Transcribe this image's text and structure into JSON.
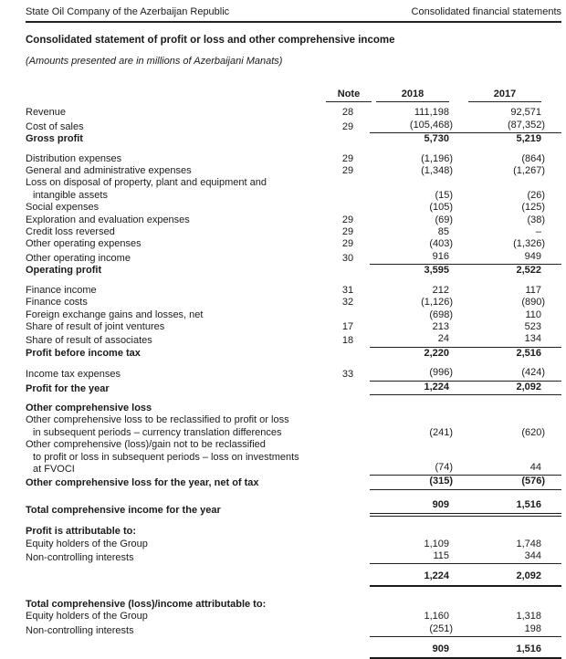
{
  "page_header": {
    "left": "State Oil Company of the Azerbaijan Republic",
    "right": "Consolidated financial statements"
  },
  "title": "Consolidated statement of profit or loss and other comprehensive income",
  "subtitle": "(Amounts presented are in millions of Azerbaijani Manats)",
  "columns": {
    "note": "Note",
    "y2018": "2018",
    "y2017": "2017"
  },
  "statement": {
    "rows": [
      {
        "label": "Revenue",
        "note": "28",
        "v2018": "111,198",
        "v2017": "92,571"
      },
      {
        "label": "Cost of sales",
        "note": "29",
        "v2018": "(105,468)",
        "v2017": "(87,352)",
        "rule": "single"
      },
      {
        "label": "Gross profit",
        "bold": true,
        "v2018": "5,730",
        "v2017": "5,219"
      },
      {
        "gap": 8
      },
      {
        "label": "Distribution expenses",
        "note": "29",
        "v2018": "(1,196)",
        "v2017": "(864)"
      },
      {
        "label": "General and administrative expenses",
        "note": "29",
        "v2018": "(1,348)",
        "v2017": "(1,267)"
      },
      {
        "lines": [
          "Loss on disposal of property, plant and equipment and",
          "intangible assets"
        ],
        "v2018": "(15)",
        "v2017": "(26)"
      },
      {
        "label": "Social expenses",
        "v2018": "(105)",
        "v2017": "(125)"
      },
      {
        "label": "Exploration and evaluation expenses",
        "note": "29",
        "v2018": "(69)",
        "v2017": "(38)"
      },
      {
        "label": "Credit loss reversed",
        "note": "29",
        "v2018": "85",
        "v2017": "–"
      },
      {
        "label": "Other operating expenses",
        "note": "29",
        "v2018": "(403)",
        "v2017": "(1,326)"
      },
      {
        "label": "Other operating income",
        "note": "30",
        "v2018": "916",
        "v2017": "949",
        "rule": "single"
      },
      {
        "label": "Operating profit",
        "bold": true,
        "v2018": "3,595",
        "v2017": "2,522"
      },
      {
        "gap": 8
      },
      {
        "label": "Finance income",
        "note": "31",
        "v2018": "212",
        "v2017": "117"
      },
      {
        "label": "Finance costs",
        "note": "32",
        "v2018": "(1,126)",
        "v2017": "(890)"
      },
      {
        "label": "Foreign exchange gains and losses, net",
        "v2018": "(698)",
        "v2017": "110"
      },
      {
        "label": "Share of result of joint ventures",
        "note": "17",
        "v2018": "213",
        "v2017": "523"
      },
      {
        "label": "Share of result of associates",
        "note": "18",
        "v2018": "24",
        "v2017": "134",
        "rule": "single"
      },
      {
        "label": "Profit before income tax",
        "bold": true,
        "v2018": "2,220",
        "v2017": "2,516"
      },
      {
        "gap": 8
      },
      {
        "label": "Income tax expenses",
        "note": "33",
        "v2018": "(996)",
        "v2017": "(424)",
        "rule": "single"
      },
      {
        "label": "Profit for the year",
        "bold": true,
        "v2018": "1,224",
        "v2017": "2,092",
        "rule": "single"
      },
      {
        "gap": 8
      },
      {
        "label": "Other comprehensive loss",
        "bold": true
      },
      {
        "lines": [
          "Other comprehensive loss to be reclassified to profit or loss",
          "in subsequent periods – currency translation differences"
        ],
        "v2018": "(241)",
        "v2017": "(620)"
      },
      {
        "lines": [
          "Other comprehensive (loss)/gain not to be reclassified",
          "to profit or loss in subsequent periods – loss on investments",
          "at FVOCI"
        ],
        "v2018": "(74)",
        "v2017": "44",
        "rule": "single"
      },
      {
        "label": "Other comprehensive loss for the year, net of tax",
        "bold": true,
        "v2018": "(315)",
        "v2017": "(576)",
        "rule": "single"
      },
      {
        "gap": 10
      },
      {
        "label": "Total comprehensive income for the year",
        "bold": true,
        "v2018": "909",
        "v2017": "1,516",
        "rule": "double"
      },
      {
        "gap": 10
      },
      {
        "label": "Profit is attributable to:",
        "bold": true
      },
      {
        "label": "Equity holders of the Group",
        "v2018": "1,109",
        "v2017": "1,748"
      },
      {
        "label": "Non-controlling interests",
        "v2018": "115",
        "v2017": "344",
        "rule": "single"
      },
      {
        "gap": 7
      },
      {
        "id": "profit-attributable-total",
        "bold": true,
        "v2018": "1,224",
        "v2017": "2,092",
        "rule": "thick"
      },
      {
        "gap": 13
      },
      {
        "label": "Total comprehensive (loss)/income attributable to:",
        "bold": true
      },
      {
        "label": "Equity holders of the Group",
        "v2018": "1,160",
        "v2017": "1,318"
      },
      {
        "label": "Non-controlling interests",
        "v2018": "(251)",
        "v2017": "198",
        "rule": "single"
      },
      {
        "gap": 7
      },
      {
        "id": "total-comprehensive-attributable-total",
        "bold": true,
        "v2018": "909",
        "v2017": "1,516",
        "rule": "thick"
      }
    ]
  }
}
